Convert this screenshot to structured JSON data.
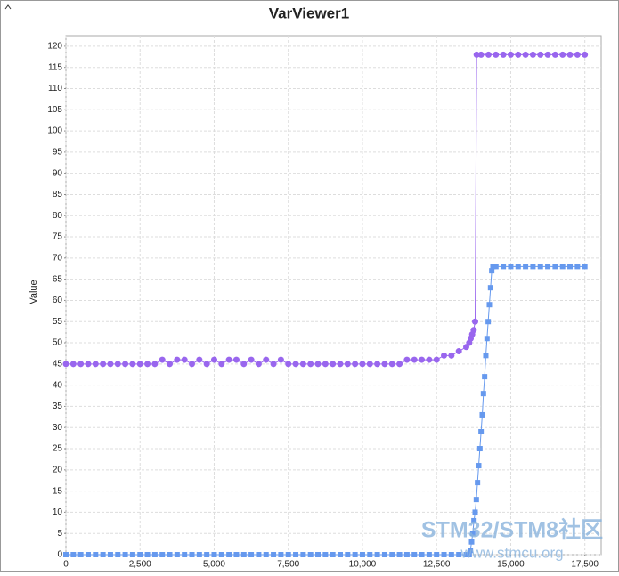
{
  "chart_data": {
    "type": "line",
    "title": "VarViewer1",
    "y_label": "Value",
    "watermark": [
      "STM32/STM8社区",
      "www.stmcu.org"
    ],
    "xlim": [
      0,
      18050
    ],
    "ylim": [
      0,
      122.5
    ],
    "xticks": [
      0,
      {
        "value": 2500,
        "label": "2,500"
      },
      {
        "value": 5000,
        "label": "5,000"
      },
      {
        "value": 7500,
        "label": "7,500"
      },
      {
        "value": 10000,
        "label": "10,000"
      },
      {
        "value": 12500,
        "label": "12,500"
      },
      {
        "value": 15000,
        "label": "15,000"
      },
      {
        "value": 17500,
        "label": "17,500"
      }
    ],
    "yticks": [
      0,
      5,
      10,
      15,
      20,
      25,
      30,
      35,
      40,
      45,
      50,
      55,
      60,
      65,
      70,
      75,
      80,
      85,
      90,
      95,
      100,
      105,
      110,
      115,
      120
    ],
    "grid": true,
    "series": [
      {
        "color": "#9966ee",
        "marker": "circle",
        "x": [
          0,
          250,
          500,
          750,
          1000,
          1250,
          1500,
          1750,
          2000,
          2250,
          2500,
          2750,
          3000,
          3250,
          3500,
          3750,
          4000,
          4250,
          4500,
          4750,
          5000,
          5250,
          5500,
          5750,
          6000,
          6250,
          6500,
          6750,
          7000,
          7250,
          7500,
          7750,
          8000,
          8250,
          8500,
          8750,
          9000,
          9250,
          9500,
          9750,
          10000,
          10250,
          10500,
          10750,
          11000,
          11250,
          11500,
          11750,
          12000,
          12250,
          12500,
          12750,
          13000,
          13250,
          13500,
          13600,
          13650,
          13700,
          13750,
          13800,
          13850,
          14000,
          14250,
          14500,
          14750,
          15000,
          15250,
          15500,
          15750,
          16000,
          16250,
          16500,
          16750,
          17000,
          17250,
          17500
        ],
        "values": [
          45,
          45,
          45,
          45,
          45,
          45,
          45,
          45,
          45,
          45,
          45,
          45,
          45,
          46,
          45,
          46,
          46,
          45,
          46,
          45,
          46,
          45,
          46,
          46,
          45,
          46,
          45,
          46,
          45,
          46,
          45,
          45,
          45,
          45,
          45,
          45,
          45,
          45,
          45,
          45,
          45,
          45,
          45,
          45,
          45,
          45,
          46,
          46,
          46,
          46,
          46,
          47,
          47,
          48,
          49,
          50,
          51,
          52,
          53,
          55,
          118,
          118,
          118,
          118,
          118,
          118,
          118,
          118,
          118,
          118,
          118,
          118,
          118,
          118,
          118,
          118
        ]
      },
      {
        "color": "#6699ee",
        "marker": "square",
        "x": [
          0,
          250,
          500,
          750,
          1000,
          1250,
          1500,
          1750,
          2000,
          2250,
          2500,
          2750,
          3000,
          3250,
          3500,
          3750,
          4000,
          4250,
          4500,
          4750,
          5000,
          5250,
          5500,
          5750,
          6000,
          6250,
          6500,
          6750,
          7000,
          7250,
          7500,
          7750,
          8000,
          8250,
          8500,
          8750,
          9000,
          9250,
          9500,
          9750,
          10000,
          10250,
          10500,
          10750,
          11000,
          11250,
          11500,
          11750,
          12000,
          12250,
          12500,
          12750,
          13000,
          13250,
          13500,
          13600,
          13640,
          13680,
          13720,
          13760,
          13800,
          13840,
          13880,
          13920,
          13960,
          14000,
          14040,
          14080,
          14120,
          14160,
          14200,
          14240,
          14280,
          14320,
          14360,
          14400,
          14500,
          14750,
          15000,
          15250,
          15500,
          15750,
          16000,
          16250,
          16500,
          16750,
          17000,
          17250,
          17500
        ],
        "values": [
          0,
          0,
          0,
          0,
          0,
          0,
          0,
          0,
          0,
          0,
          0,
          0,
          0,
          0,
          0,
          0,
          0,
          0,
          0,
          0,
          0,
          0,
          0,
          0,
          0,
          0,
          0,
          0,
          0,
          0,
          0,
          0,
          0,
          0,
          0,
          0,
          0,
          0,
          0,
          0,
          0,
          0,
          0,
          0,
          0,
          0,
          0,
          0,
          0,
          0,
          0,
          0,
          0,
          0,
          0,
          0,
          1,
          3,
          5,
          8,
          10,
          13,
          17,
          21,
          25,
          29,
          33,
          38,
          42,
          47,
          51,
          55,
          59,
          63,
          67,
          68,
          68,
          68,
          68,
          68,
          68,
          68,
          68,
          68,
          68,
          68,
          68,
          68,
          68
        ]
      }
    ]
  }
}
